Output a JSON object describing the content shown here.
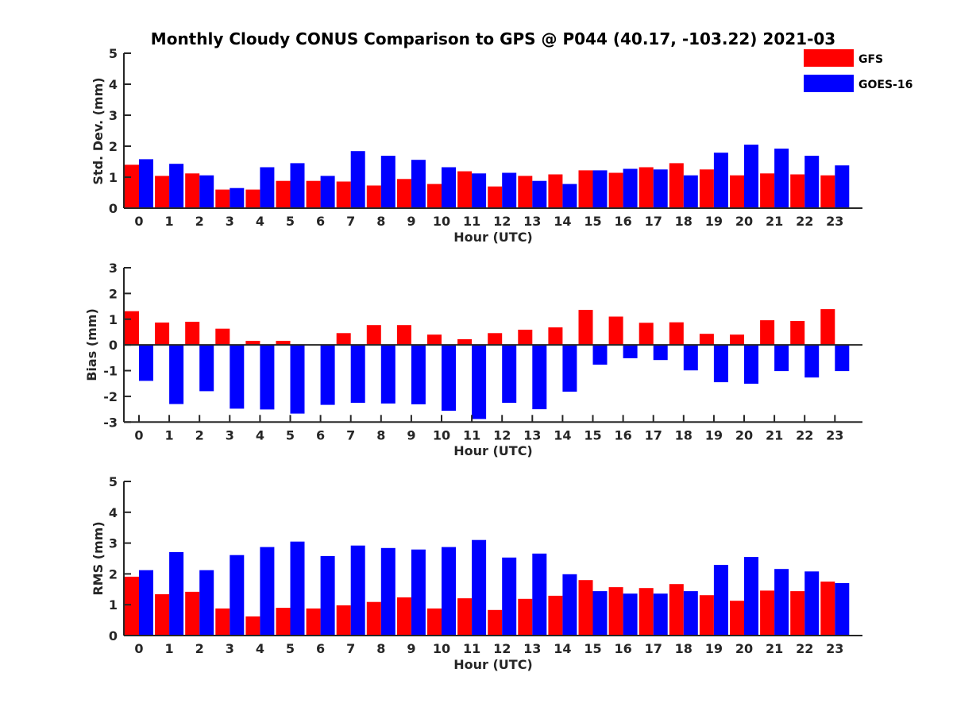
{
  "chart_data": {
    "type": "bar",
    "title": "Monthly Cloudy CONUS Comparison to GPS @ P044 (40.17, -103.22) 2021-03",
    "legend": {
      "placement": "top-right",
      "entries": [
        {
          "name": "GFS",
          "color": "#ff0000"
        },
        {
          "name": "GOES-16",
          "color": "#0000ff"
        }
      ]
    },
    "categories": [
      "0",
      "1",
      "2",
      "3",
      "4",
      "5",
      "6",
      "7",
      "8",
      "9",
      "10",
      "11",
      "12",
      "13",
      "14",
      "15",
      "16",
      "17",
      "18",
      "19",
      "20",
      "21",
      "22",
      "23"
    ],
    "panels": [
      {
        "id": "std",
        "ylabel": "Std. Dev. (mm)",
        "xlabel": "Hour (UTC)",
        "ylim": [
          0,
          5
        ],
        "yticks": [
          0,
          1,
          2,
          3,
          4,
          5
        ],
        "series": [
          {
            "name": "GFS",
            "color": "#ff0000",
            "values": [
              1.4,
              1.04,
              1.12,
              0.6,
              0.6,
              0.88,
              0.88,
              0.86,
              0.73,
              0.94,
              0.78,
              1.19,
              0.7,
              1.04,
              1.09,
              1.22,
              1.14,
              1.32,
              1.45,
              1.25,
              1.06,
              1.12,
              1.09,
              1.06
            ]
          },
          {
            "name": "GOES-16",
            "color": "#0000ff",
            "values": [
              1.58,
              1.43,
              1.06,
              0.65,
              1.32,
              1.45,
              1.04,
              1.84,
              1.69,
              1.56,
              1.32,
              1.12,
              1.14,
              0.88,
              0.78,
              1.22,
              1.27,
              1.25,
              1.06,
              1.79,
              2.05,
              1.92,
              1.69,
              1.38
            ]
          }
        ]
      },
      {
        "id": "bias",
        "ylabel": "Bias (mm)",
        "xlabel": "Hour (UTC)",
        "ylim": [
          -3,
          3
        ],
        "yticks": [
          -3,
          -2,
          -1,
          0,
          1,
          2,
          3
        ],
        "series": [
          {
            "name": "GFS",
            "color": "#ff0000",
            "values": [
              1.31,
              0.87,
              0.9,
              0.63,
              0.16,
              0.16,
              0.0,
              0.46,
              0.77,
              0.77,
              0.4,
              0.22,
              0.46,
              0.59,
              0.68,
              1.36,
              1.1,
              0.86,
              0.88,
              0.43,
              0.4,
              0.96,
              0.93,
              1.39
            ]
          },
          {
            "name": "GOES-16",
            "color": "#0000ff",
            "values": [
              -1.4,
              -2.3,
              -1.8,
              -2.48,
              -2.51,
              -2.67,
              -2.33,
              -2.25,
              -2.28,
              -2.31,
              -2.56,
              -2.88,
              -2.25,
              -2.5,
              -1.82,
              -0.77,
              -0.52,
              -0.59,
              -0.99,
              -1.45,
              -1.51,
              -1.02,
              -1.27,
              -1.02
            ]
          }
        ]
      },
      {
        "id": "rms",
        "ylabel": "RMS (mm)",
        "xlabel": "Hour (UTC)",
        "ylim": [
          0,
          5
        ],
        "yticks": [
          0,
          1,
          2,
          3,
          4,
          5
        ],
        "series": [
          {
            "name": "GFS",
            "color": "#ff0000",
            "values": [
              1.91,
              1.34,
              1.42,
              0.88,
              0.62,
              0.9,
              0.88,
              0.98,
              1.09,
              1.24,
              0.88,
              1.21,
              0.83,
              1.19,
              1.29,
              1.8,
              1.57,
              1.54,
              1.67,
              1.31,
              1.13,
              1.46,
              1.44,
              1.75
            ]
          },
          {
            "name": "GOES-16",
            "color": "#0000ff",
            "values": [
              2.12,
              2.71,
              2.12,
              2.61,
              2.87,
              3.05,
              2.58,
              2.92,
              2.84,
              2.79,
              2.87,
              3.1,
              2.53,
              2.66,
              1.99,
              1.44,
              1.36,
              1.36,
              1.44,
              2.29,
              2.55,
              2.16,
              2.08,
              1.7
            ]
          }
        ]
      }
    ]
  }
}
